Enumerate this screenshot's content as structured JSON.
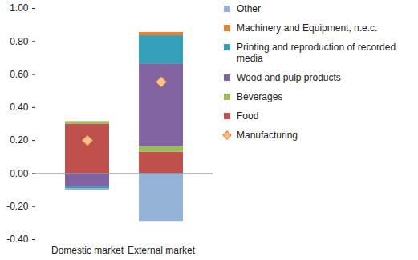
{
  "chart_data": {
    "type": "bar",
    "stacked": true,
    "grid": false,
    "legend": "right",
    "categories": [
      "Domestic market",
      "External market"
    ],
    "series": [
      {
        "name": "Food",
        "color": "#C0504D",
        "values": [
          0.3,
          0.13
        ]
      },
      {
        "name": "Beverages",
        "color": "#9BBB59",
        "values": [
          0.015,
          0.035
        ]
      },
      {
        "name": "Wood and pulp products",
        "color": "#8064A2",
        "values": [
          -0.08,
          0.5
        ]
      },
      {
        "name": "Printing and reproduction of recorded media",
        "color": "#31A0B8",
        "values": [
          -0.01,
          0.17
        ]
      },
      {
        "name": "Machinery and Equipment, n.e.c.",
        "color": "#E8822E",
        "values": [
          0,
          0.02
        ]
      },
      {
        "name": "Other",
        "color": "#95B3D7",
        "values": [
          -0.01,
          -0.29
        ]
      },
      {
        "name": "Manufacturing",
        "type": "scatter",
        "marker": "diamond",
        "color": "#FAC090",
        "values": [
          0.2,
          0.555
        ]
      }
    ],
    "ylim": [
      -0.4,
      1.0
    ],
    "yticks": [
      {
        "value": -0.4,
        "label": "-0.40"
      },
      {
        "value": -0.2,
        "label": "-0.20"
      },
      {
        "value": 0,
        "label": "0.00"
      },
      {
        "value": 0.2,
        "label": "0.20"
      },
      {
        "value": 0.4,
        "label": "0.40"
      },
      {
        "value": 0.6,
        "label": "0.60"
      },
      {
        "value": 0.8,
        "label": "0.80"
      },
      {
        "value": 1.0,
        "label": "1.00"
      }
    ]
  }
}
